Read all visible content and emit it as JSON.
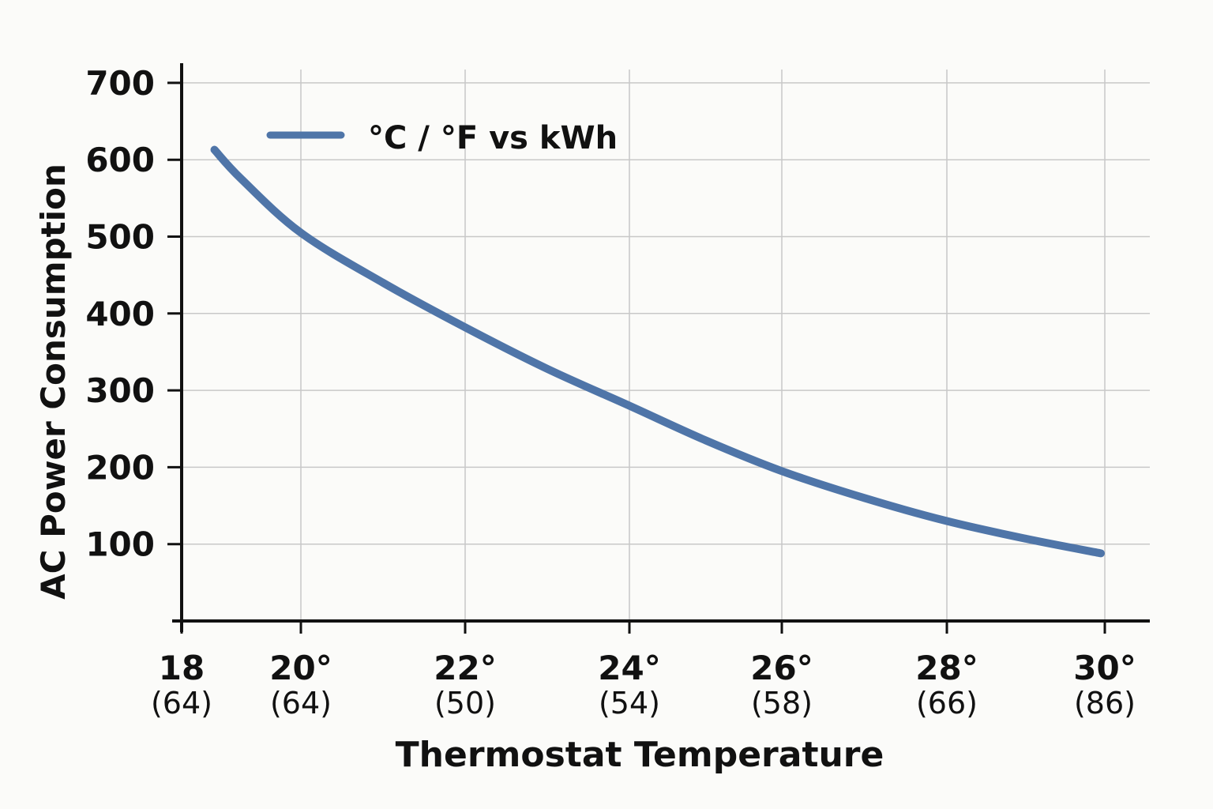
{
  "chart_data": {
    "type": "line",
    "xlabel": "Thermostat Temperature",
    "ylabel": "AC Power Consumption",
    "xlim": [
      18,
      30
    ],
    "ylim": [
      0,
      700
    ],
    "grid": true,
    "legend_position": "top-left",
    "x_ticks": [
      {
        "value": 18,
        "label": "18",
        "sublabel": "(64)"
      },
      {
        "value": 20,
        "label": "20°",
        "sublabel": "(64)"
      },
      {
        "value": 22,
        "label": "22°",
        "sublabel": "(50)"
      },
      {
        "value": 24,
        "label": "24°",
        "sublabel": "(54)"
      },
      {
        "value": 26,
        "label": "26°",
        "sublabel": "(58)"
      },
      {
        "value": 28,
        "label": "28°",
        "sublabel": "(66)"
      },
      {
        "value": 30,
        "label": "30°",
        "sublabel": "(86)"
      }
    ],
    "y_ticks": [
      100,
      200,
      300,
      400,
      500,
      600,
      700
    ],
    "series": [
      {
        "name": "°C / °F vs kWh",
        "color": "#4f75a8",
        "x": [
          18.55,
          19,
          20,
          21,
          22,
          23,
          24,
          25,
          26,
          27,
          28,
          29,
          29.95
        ],
        "y": [
          613,
          575,
          505,
          440,
          382,
          328,
          280,
          235,
          195,
          160,
          130,
          107,
          88
        ]
      }
    ]
  }
}
